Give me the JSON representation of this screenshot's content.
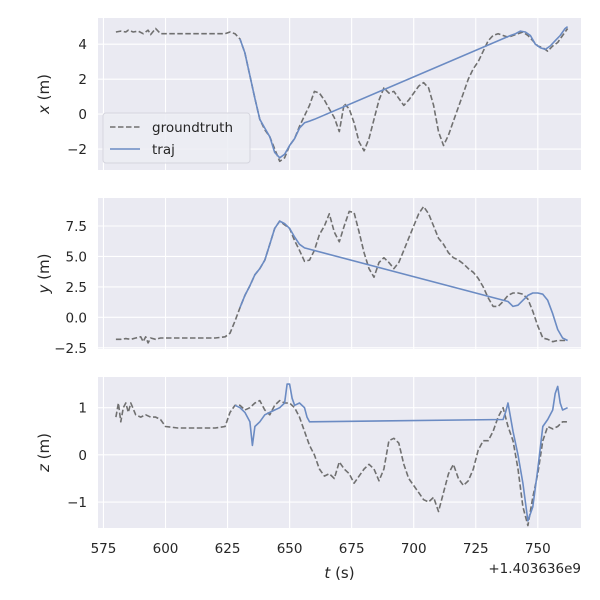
{
  "colors": {
    "panel_bg": "#eaeaf2",
    "grid": "#ffffff",
    "groundtruth": "#707070",
    "traj": "#6b8bc3",
    "text": "#262626"
  },
  "chart_data": [
    {
      "type": "line",
      "ylabel_var": "x",
      "ylabel_unit": " (m)",
      "ylim": [
        -3.2,
        5.5
      ],
      "yticks": [
        -2,
        0,
        2,
        4
      ],
      "ytick_labels": [
        "−2",
        "0",
        "2",
        "4"
      ],
      "legend": {
        "placement": "center-left",
        "entries": [
          "groundtruth",
          "traj"
        ]
      },
      "series": [
        {
          "name": "groundtruth",
          "style": "dashed",
          "x": [
            580,
            582,
            584,
            585,
            587,
            589,
            591,
            593,
            594,
            596,
            598,
            600,
            605,
            610,
            615,
            620,
            624,
            626,
            628,
            630,
            632,
            634,
            636,
            638,
            640,
            642,
            644,
            646,
            648,
            650,
            652,
            654,
            656,
            658,
            660,
            662,
            664,
            666,
            668,
            670,
            672,
            674,
            676,
            678,
            680,
            682,
            684,
            686,
            688,
            690,
            692,
            694,
            696,
            698,
            700,
            702,
            704,
            706,
            708,
            710,
            712,
            714,
            716,
            718,
            720,
            722,
            724,
            726,
            728,
            730,
            732,
            734,
            736,
            738,
            740,
            742,
            744,
            746,
            748,
            750,
            752,
            754,
            756,
            758,
            760,
            762
          ],
          "y": [
            4.7,
            4.75,
            4.7,
            4.8,
            4.7,
            4.75,
            4.6,
            4.8,
            4.55,
            4.9,
            4.6,
            4.6,
            4.6,
            4.6,
            4.6,
            4.6,
            4.6,
            4.7,
            4.6,
            4.3,
            3.5,
            2.2,
            0.9,
            -0.3,
            -0.9,
            -1.3,
            -2.0,
            -2.7,
            -2.5,
            -1.8,
            -1.4,
            -0.7,
            -0.1,
            0.5,
            1.3,
            1.2,
            0.8,
            0.3,
            -0.2,
            -1.0,
            0.6,
            0.3,
            -0.5,
            -1.6,
            -2.1,
            -1.4,
            -0.3,
            0.8,
            1.5,
            1.2,
            1.3,
            0.9,
            0.5,
            0.8,
            1.2,
            1.6,
            1.8,
            1.5,
            0.5,
            -1.0,
            -1.8,
            -1.2,
            -0.4,
            0.4,
            1.2,
            2.0,
            2.6,
            3.0,
            3.6,
            4.2,
            4.5,
            4.6,
            4.5,
            4.4,
            4.5,
            4.6,
            4.7,
            4.5,
            4.2,
            3.9,
            3.8,
            3.6,
            3.9,
            4.1,
            4.5,
            4.9
          ]
        },
        {
          "name": "traj",
          "style": "solid",
          "x": [
            630,
            632,
            634,
            636,
            638,
            640,
            642,
            644,
            646,
            648,
            650,
            652,
            654,
            656,
            658,
            660,
            739,
            741,
            743,
            745,
            747,
            749,
            751,
            753,
            755,
            757,
            759,
            761,
            762
          ],
          "y": [
            4.3,
            3.5,
            2.2,
            0.9,
            -0.3,
            -0.8,
            -1.3,
            -2.2,
            -2.5,
            -2.3,
            -1.8,
            -1.4,
            -0.8,
            -0.5,
            -0.4,
            -0.3,
            4.5,
            4.6,
            4.75,
            4.7,
            4.5,
            4.0,
            3.8,
            3.7,
            3.9,
            4.2,
            4.5,
            4.9,
            5.0
          ]
        }
      ]
    },
    {
      "type": "line",
      "ylabel_var": "y",
      "ylabel_unit": " (m)",
      "ylim": [
        -2.6,
        9.8
      ],
      "yticks": [
        -2.5,
        0.0,
        2.5,
        5.0,
        7.5
      ],
      "ytick_labels": [
        "−2.5",
        "0.0",
        "2.5",
        "5.0",
        "7.5"
      ],
      "series": [
        {
          "name": "groundtruth",
          "style": "dashed",
          "x": [
            580,
            582,
            584,
            586,
            588,
            590,
            591,
            592,
            593,
            594,
            596,
            598,
            600,
            605,
            610,
            615,
            620,
            624,
            626,
            628,
            630,
            632,
            634,
            636,
            638,
            640,
            642,
            644,
            646,
            648,
            650,
            652,
            654,
            656,
            658,
            660,
            662,
            664,
            666,
            668,
            670,
            672,
            674,
            676,
            678,
            680,
            682,
            684,
            686,
            688,
            690,
            692,
            694,
            696,
            698,
            700,
            702,
            704,
            706,
            708,
            710,
            712,
            714,
            716,
            718,
            720,
            722,
            724,
            726,
            728,
            730,
            732,
            734,
            736,
            738,
            740,
            742,
            744,
            746,
            748,
            750,
            752,
            754,
            756,
            758,
            760,
            762
          ],
          "y": [
            -1.8,
            -1.8,
            -1.75,
            -1.8,
            -1.7,
            -1.6,
            -2.0,
            -1.6,
            -2.1,
            -1.7,
            -1.8,
            -1.7,
            -1.7,
            -1.7,
            -1.7,
            -1.7,
            -1.7,
            -1.6,
            -1.3,
            -0.3,
            0.8,
            1.8,
            2.6,
            3.5,
            4.0,
            4.7,
            6.0,
            7.3,
            7.9,
            7.6,
            7.3,
            6.3,
            5.5,
            4.6,
            4.7,
            5.5,
            6.8,
            7.5,
            8.5,
            7.0,
            6.2,
            7.5,
            8.7,
            8.6,
            7.0,
            5.3,
            4.0,
            3.3,
            4.5,
            4.9,
            4.5,
            4.0,
            4.5,
            5.5,
            6.5,
            7.5,
            8.5,
            9.1,
            8.5,
            7.5,
            6.5,
            6.0,
            5.3,
            4.9,
            4.7,
            4.4,
            4.0,
            3.7,
            3.2,
            2.5,
            1.6,
            0.9,
            0.9,
            1.3,
            1.8,
            2.0,
            2.0,
            1.9,
            1.5,
            0.5,
            -0.7,
            -1.7,
            -1.8,
            -2.0,
            -1.9,
            -1.9,
            -1.9
          ]
        },
        {
          "name": "traj",
          "style": "solid",
          "x": [
            630,
            632,
            634,
            636,
            638,
            640,
            642,
            644,
            646,
            648,
            650,
            652,
            654,
            656,
            738,
            740,
            742,
            744,
            746,
            748,
            750,
            752,
            754,
            756,
            758,
            760,
            762
          ],
          "y": [
            0.8,
            1.8,
            2.6,
            3.5,
            4.0,
            4.7,
            6.0,
            7.3,
            7.9,
            7.7,
            7.3,
            6.6,
            6.0,
            5.7,
            1.3,
            0.9,
            1.0,
            1.4,
            1.8,
            2.0,
            2.0,
            1.9,
            1.4,
            0.3,
            -1.0,
            -1.7,
            -1.9
          ]
        }
      ]
    },
    {
      "type": "line",
      "ylabel_var": "z",
      "ylabel_unit": " (m)",
      "ylim": [
        -1.55,
        1.65
      ],
      "yticks": [
        -1,
        0,
        1
      ],
      "ytick_labels": [
        "−1",
        "0",
        "1"
      ],
      "xticks": [
        575,
        600,
        625,
        650,
        675,
        700,
        725,
        750
      ],
      "xtick_labels": [
        "575",
        "600",
        "625",
        "650",
        "675",
        "700",
        "725",
        "750"
      ],
      "xlabel_var": "t",
      "xlabel_unit": " (s)",
      "offset_text": "+1.403636e9",
      "series": [
        {
          "name": "groundtruth",
          "style": "dashed",
          "x": [
            580,
            581,
            582,
            583,
            584,
            585,
            586,
            588,
            590,
            592,
            594,
            596,
            598,
            600,
            605,
            610,
            615,
            620,
            624,
            626,
            628,
            630,
            632,
            634,
            636,
            638,
            640,
            642,
            644,
            646,
            648,
            650,
            652,
            654,
            656,
            658,
            660,
            662,
            664,
            666,
            668,
            670,
            672,
            674,
            676,
            678,
            680,
            682,
            684,
            686,
            688,
            690,
            692,
            694,
            696,
            698,
            700,
            702,
            704,
            706,
            708,
            710,
            712,
            714,
            716,
            718,
            720,
            722,
            724,
            726,
            728,
            730,
            732,
            734,
            736,
            738,
            740,
            742,
            744,
            746,
            748,
            750,
            752,
            754,
            756,
            758,
            760,
            762
          ],
          "y": [
            0.8,
            1.1,
            0.7,
            1.0,
            1.1,
            0.9,
            1.1,
            0.85,
            0.8,
            0.85,
            0.8,
            0.8,
            0.75,
            0.6,
            0.57,
            0.57,
            0.57,
            0.57,
            0.6,
            0.9,
            1.05,
            1.05,
            0.95,
            1.0,
            1.1,
            1.15,
            0.95,
            0.85,
            1.05,
            1.15,
            1.1,
            1.1,
            1.0,
            0.8,
            0.5,
            0.2,
            0.0,
            -0.3,
            -0.45,
            -0.4,
            -0.5,
            -0.15,
            -0.3,
            -0.4,
            -0.6,
            -0.45,
            -0.3,
            -0.2,
            -0.3,
            -0.55,
            -0.3,
            0.3,
            0.35,
            0.25,
            -0.2,
            -0.5,
            -0.65,
            -0.8,
            -0.95,
            -1.0,
            -0.9,
            -1.2,
            -0.8,
            -0.4,
            -0.2,
            -0.5,
            -0.65,
            -0.55,
            -0.3,
            0.1,
            0.3,
            0.3,
            0.5,
            0.8,
            1.0,
            0.6,
            0.3,
            -0.3,
            -1.1,
            -1.5,
            -0.9,
            -0.4,
            0.3,
            0.6,
            0.55,
            0.6,
            0.7,
            0.7
          ]
        },
        {
          "name": "traj",
          "style": "solid",
          "x": [
            628,
            630,
            632,
            634,
            635,
            636,
            638,
            640,
            642,
            644,
            646,
            648,
            649,
            650,
            651,
            652,
            654,
            656,
            657,
            658,
            736,
            737,
            738,
            739,
            740,
            742,
            744,
            746,
            748,
            750,
            752,
            754,
            756,
            757,
            758,
            759,
            760,
            762
          ],
          "y": [
            1.05,
            1.0,
            0.9,
            0.7,
            0.2,
            0.6,
            0.7,
            0.85,
            0.9,
            0.95,
            1.0,
            1.1,
            1.5,
            1.5,
            1.2,
            1.05,
            1.1,
            1.0,
            0.8,
            0.7,
            0.75,
            0.9,
            1.1,
            0.8,
            0.5,
            0.0,
            -0.6,
            -1.4,
            -1.1,
            -0.3,
            0.6,
            0.75,
            0.95,
            1.3,
            1.45,
            1.1,
            0.95,
            1.0
          ]
        }
      ]
    }
  ]
}
